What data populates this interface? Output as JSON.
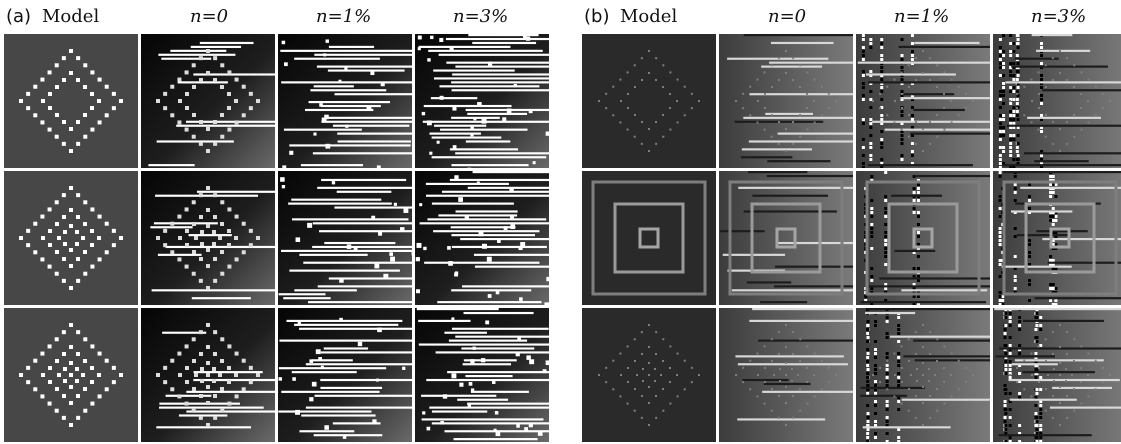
{
  "panels": [
    {
      "label": "(a)",
      "columns": [
        "Model",
        "n=0",
        "n=1%",
        "n=3%"
      ],
      "style": "a",
      "rows": [
        {
          "model": "two-diamonds"
        },
        {
          "model": "three-diamonds"
        },
        {
          "model": "three-diamonds-center"
        }
      ]
    },
    {
      "label": "(b)",
      "columns": [
        "Model",
        "n=0",
        "n=1%",
        "n=3%"
      ],
      "style": "b",
      "rows": [
        {
          "model": "two-diamonds"
        },
        {
          "model": "nested-squares"
        },
        {
          "model": "three-diamonds-center"
        }
      ]
    }
  ],
  "colors": {
    "model_bg_a": "#474747",
    "model_bg_b": "#2a2a2a",
    "line_white": "#ffffff",
    "line_gray": "#8a8a8a"
  }
}
